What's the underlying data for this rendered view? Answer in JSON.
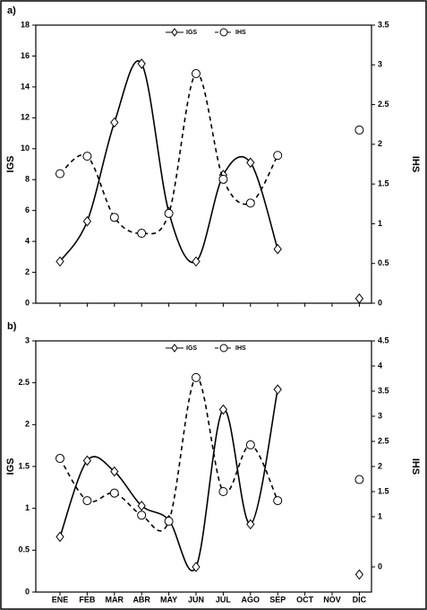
{
  "chart_data": [
    {
      "type": "line",
      "label": "a)",
      "y_label": "IGS",
      "y2_label": "IHS",
      "categories": [
        null,
        null,
        null,
        null,
        null,
        null,
        null,
        null,
        null,
        null,
        null,
        null
      ],
      "ylim": [
        0,
        18
      ],
      "yticks": [
        0,
        2,
        4,
        6,
        8,
        10,
        12,
        14,
        16,
        18
      ],
      "y2lim": [
        0,
        3.5
      ],
      "y2ticks": [
        0,
        0.5,
        1,
        1.5,
        2,
        2.5,
        3,
        3.5
      ],
      "series": [
        {
          "name": "IGS",
          "color": "#000000",
          "marker": "diamond",
          "dashed": false,
          "values": [
            2.7,
            5.3,
            11.7,
            15.5,
            5.9,
            2.7,
            8.3,
            9.1,
            3.5,
            null,
            null,
            0.3
          ]
        },
        {
          "name": "IHS",
          "color": "#000000",
          "marker": "circle",
          "dashed": true,
          "axis": "y2",
          "values": [
            1.63,
            1.85,
            1.08,
            0.88,
            1.13,
            2.89,
            1.56,
            1.26,
            1.86,
            null,
            null,
            2.18
          ]
        }
      ]
    },
    {
      "type": "line",
      "label": "b)",
      "y_label": "IGS",
      "y2_label": "IHS",
      "categories": [
        "ENE",
        "FEB",
        "MAR",
        "ABR",
        "MAY",
        "JUN",
        "JUL",
        "AGO",
        "SEP",
        "OCT",
        "NOV",
        "DIC"
      ],
      "ylim": [
        0,
        3
      ],
      "yticks": [
        0,
        0.5,
        1,
        1.5,
        2,
        2.5,
        3
      ],
      "y2lim": [
        -0.5,
        4.5
      ],
      "y2ticks": [
        0,
        1,
        1.5,
        2,
        2.5,
        3,
        3.5,
        4,
        4.5
      ],
      "series": [
        {
          "name": "IGS",
          "color": "#000000",
          "marker": "diamond",
          "dashed": false,
          "values": [
            0.66,
            1.57,
            1.44,
            1.03,
            0.86,
            0.3,
            2.18,
            0.81,
            2.42,
            null,
            null,
            0.21
          ]
        },
        {
          "name": "IHS",
          "color": "#000000",
          "marker": "circle",
          "dashed": true,
          "axis": "y2",
          "values": [
            2.16,
            1.32,
            1.47,
            1.03,
            0.91,
            3.77,
            1.5,
            2.43,
            1.32,
            null,
            null,
            1.74
          ]
        }
      ]
    }
  ]
}
